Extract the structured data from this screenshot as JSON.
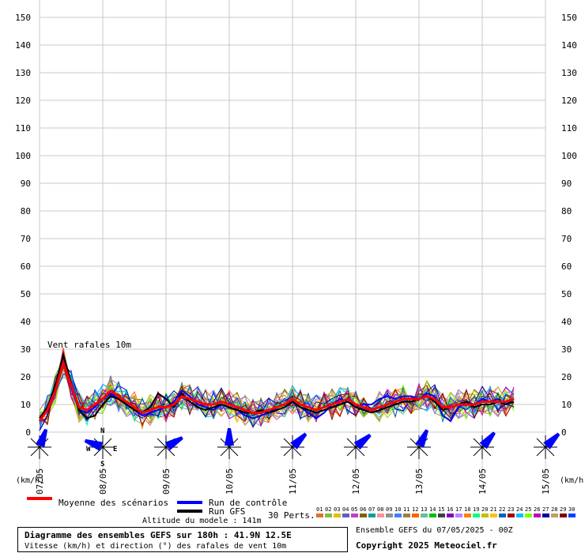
{
  "chart_data": {
    "type": "line",
    "chart_label": "Vent rafales 10m",
    "y_unit_left": "(km/h)",
    "y_unit_right": "(km/h)",
    "ylim": [
      0,
      150
    ],
    "y_ticks": [
      0,
      10,
      20,
      30,
      40,
      50,
      60,
      70,
      80,
      90,
      100,
      110,
      120,
      130,
      140,
      150
    ],
    "x_ticks": [
      {
        "label": "07/05",
        "step": 0
      },
      {
        "label": "08/05",
        "step": 8
      },
      {
        "label": "09/05",
        "step": 16
      },
      {
        "label": "10/05",
        "step": 24
      },
      {
        "label": "11/05",
        "step": 32
      },
      {
        "label": "12/05",
        "step": 40
      },
      {
        "label": "13/05",
        "step": 48
      },
      {
        "label": "14/05",
        "step": 56
      },
      {
        "label": "15/05",
        "step": 64
      }
    ],
    "grid": true,
    "steps": 61,
    "step_hours": 3,
    "series": [
      {
        "name": "Moyenne des scénarios",
        "color": "#ff0000",
        "values": [
          4,
          8,
          15,
          25,
          17,
          9,
          8,
          10,
          12,
          15,
          13,
          11,
          9,
          7,
          8,
          9,
          9,
          10,
          13,
          12,
          11,
          10,
          10,
          11,
          10,
          9,
          8,
          7,
          7,
          8,
          9,
          10,
          12,
          10,
          9,
          8,
          9,
          10,
          11,
          12,
          10,
          9,
          8,
          9,
          10,
          11,
          12,
          12,
          12,
          13,
          12,
          9,
          9,
          10,
          10,
          10,
          11,
          11,
          11,
          11,
          12
        ]
      },
      {
        "name": "Run de contrôle",
        "color": "#0000ff",
        "values": [
          5,
          9,
          16,
          27,
          16,
          8,
          7,
          9,
          12,
          14,
          12,
          10,
          8,
          6,
          7,
          8,
          9,
          11,
          15,
          13,
          10,
          9,
          8,
          10,
          9,
          8,
          6,
          5,
          6,
          7,
          9,
          10,
          11,
          9,
          7,
          5,
          7,
          10,
          12,
          11,
          9,
          10,
          10,
          12,
          13,
          12,
          13,
          13,
          12,
          14,
          13,
          6,
          4,
          9,
          11,
          10,
          12,
          11,
          12,
          10,
          12
        ]
      },
      {
        "name": "Run GFS",
        "color": "#000000",
        "values": [
          5,
          9,
          17,
          28,
          18,
          8,
          5,
          6,
          10,
          13,
          12,
          10,
          8,
          7,
          9,
          14,
          12,
          9,
          14,
          11,
          9,
          8,
          9,
          10,
          9,
          8,
          7,
          7,
          8,
          7,
          8,
          9,
          11,
          9,
          8,
          7,
          8,
          9,
          10,
          11,
          9,
          8,
          7,
          8,
          9,
          10,
          11,
          11,
          12,
          13,
          11,
          8,
          9,
          10,
          11,
          9,
          10,
          10,
          11,
          10,
          11
        ]
      }
    ],
    "perturbation_count_label": "30 Perts.",
    "perturbations": [
      {
        "name": "01",
        "color": "#e07030"
      },
      {
        "name": "02",
        "color": "#80c040"
      },
      {
        "name": "03",
        "color": "#e0c000"
      },
      {
        "name": "04",
        "color": "#6060c0"
      },
      {
        "name": "05",
        "color": "#c040c0"
      },
      {
        "name": "06",
        "color": "#806000"
      },
      {
        "name": "07",
        "color": "#00a0a0"
      },
      {
        "name": "08",
        "color": "#ff9090"
      },
      {
        "name": "09",
        "color": "#909090"
      },
      {
        "name": "10",
        "color": "#4080ff"
      },
      {
        "name": "11",
        "color": "#a08040"
      },
      {
        "name": "12",
        "color": "#ff6000"
      },
      {
        "name": "13",
        "color": "#60c0a0"
      },
      {
        "name": "14",
        "color": "#00c000"
      },
      {
        "name": "15",
        "color": "#404040"
      },
      {
        "name": "16",
        "color": "#8000c0"
      },
      {
        "name": "17",
        "color": "#c080ff"
      },
      {
        "name": "18",
        "color": "#ff8000"
      },
      {
        "name": "19",
        "color": "#00ff80"
      },
      {
        "name": "20",
        "color": "#c0c000"
      },
      {
        "name": "21",
        "color": "#ffc000"
      },
      {
        "name": "22",
        "color": "#0060c0"
      },
      {
        "name": "23",
        "color": "#a00000"
      },
      {
        "name": "24",
        "color": "#00c0ff"
      },
      {
        "name": "25",
        "color": "#80ff00"
      },
      {
        "name": "26",
        "color": "#c000c0"
      },
      {
        "name": "27",
        "color": "#0000a0"
      },
      {
        "name": "28",
        "color": "#c0a060"
      },
      {
        "name": "29",
        "color": "#800000"
      },
      {
        "name": "30",
        "color": "#0040ff"
      }
    ],
    "wind_directions_deg": [
      200,
      110,
      240,
      180,
      225,
      230,
      205,
      220,
      225
    ],
    "compass_letters": {
      "n": "N",
      "s": "S",
      "e": "E",
      "w": "W"
    }
  },
  "legend": {
    "mean": "Moyenne des scénarios",
    "control": "Run de contrôle",
    "gfs": "Run GFS"
  },
  "info": {
    "title": "Diagramme des ensembles GEFS sur 180h : 41.9N 12.5E",
    "subtitle": "Vitesse (km/h) et direction (°) des rafales de vent 10m",
    "altitude": "Altitude du modele : 141m",
    "run": "Ensemble GEFS du 07/05/2025 - 00Z",
    "copyright": "Copyright 2025 Meteociel.fr"
  }
}
